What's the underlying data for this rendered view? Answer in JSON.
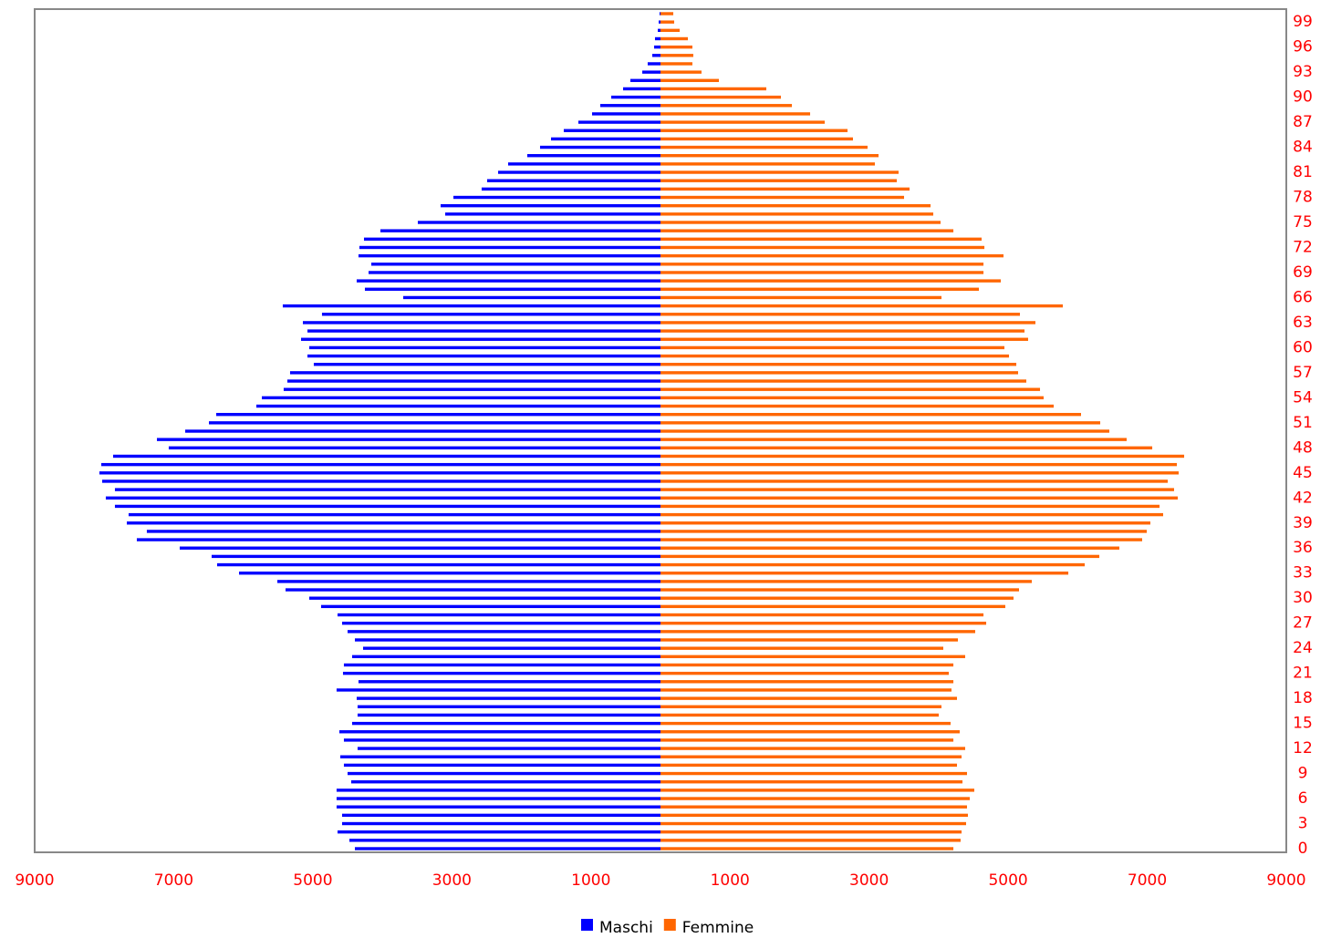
{
  "chart_data": {
    "type": "bar",
    "orientation": "horizontal",
    "categories": [
      "0",
      null,
      null,
      "3",
      null,
      null,
      "6",
      null,
      null,
      "9",
      null,
      null,
      "12",
      null,
      null,
      "15",
      null,
      null,
      "18",
      null,
      null,
      "21",
      null,
      null,
      "24",
      null,
      null,
      "27",
      null,
      null,
      "30",
      null,
      null,
      "33",
      null,
      null,
      "36",
      null,
      null,
      "39",
      null,
      null,
      "42",
      null,
      null,
      "45",
      null,
      null,
      "48",
      null,
      null,
      "51",
      null,
      null,
      "54",
      null,
      null,
      "57",
      null,
      null,
      "60",
      null,
      null,
      "63",
      null,
      null,
      "66",
      null,
      null,
      "69",
      null,
      null,
      "72",
      null,
      null,
      "75",
      null,
      null,
      "78",
      null,
      null,
      "81",
      null,
      null,
      "84",
      null,
      null,
      "87",
      null,
      null,
      "90",
      null,
      null,
      "93",
      null,
      null,
      "96",
      null,
      null,
      "99",
      null
    ],
    "series": [
      {
        "name": "Maschi",
        "color": "#0000ff",
        "values": [
          -4395,
          -4474,
          -4644,
          -4579,
          -4579,
          -4658,
          -4658,
          -4658,
          -4448,
          -4500,
          -4553,
          -4605,
          -4356,
          -4553,
          -4618,
          -4435,
          -4356,
          -4356,
          -4369,
          -4658,
          -4343,
          -4566,
          -4553,
          -4435,
          -4277,
          -4395,
          -4500,
          -4579,
          -4644,
          -4881,
          -5051,
          -5392,
          -5510,
          -6061,
          -6376,
          -6455,
          -6914,
          -7531,
          -7387,
          -7675,
          -7649,
          -7846,
          -7977,
          -7846,
          -8029,
          -8069,
          -8042,
          -7872,
          -7072,
          -7242,
          -6835,
          -6494,
          -6389,
          -5812,
          -5733,
          -5419,
          -5366,
          -5327,
          -4986,
          -5077,
          -5051,
          -5169,
          -5077,
          -5143,
          -4868,
          -5432,
          -3700,
          -4251,
          -4369,
          -4198,
          -4159,
          -4343,
          -4330,
          -4264,
          -4028,
          -3490,
          -3096,
          -3162,
          -2978,
          -2572,
          -2493,
          -2335,
          -2191,
          -1916,
          -1732,
          -1574,
          -1391,
          -1181,
          -984,
          -866,
          -708,
          -538,
          -433,
          -262,
          -184,
          -118,
          -92,
          -79,
          -39,
          -26,
          -13
        ]
      },
      {
        "name": "Femmine",
        "color": "#ff6600",
        "values": [
          4212,
          4316,
          4330,
          4395,
          4421,
          4408,
          4448,
          4513,
          4343,
          4408,
          4264,
          4330,
          4382,
          4212,
          4303,
          4172,
          4002,
          4041,
          4264,
          4185,
          4212,
          4146,
          4212,
          4382,
          4067,
          4277,
          4526,
          4684,
          4645,
          4959,
          5077,
          5156,
          5340,
          5865,
          6101,
          6311,
          6599,
          6927,
          6993,
          7045,
          7229,
          7177,
          7439,
          7386,
          7295,
          7452,
          7426,
          7531,
          7072,
          6704,
          6455,
          6324,
          6048,
          5655,
          5510,
          5458,
          5261,
          5143,
          5117,
          5012,
          4946,
          5287,
          5235,
          5392,
          5169,
          5786,
          4041,
          4579,
          4894,
          4645,
          4645,
          4933,
          4658,
          4618,
          4212,
          4028,
          3923,
          3884,
          3503,
          3582,
          3398,
          3424,
          3083,
          3136,
          2978,
          2768,
          2690,
          2362,
          2152,
          1890,
          1732,
          1522,
          840,
          590,
          459,
          472,
          459,
          394,
          276,
          197,
          184
        ]
      }
    ],
    "xlim": [
      -9000,
      9000
    ],
    "xticks": [
      {
        "value": -9000,
        "label": "9000"
      },
      {
        "value": -7000,
        "label": "7000"
      },
      {
        "value": -5000,
        "label": "5000"
      },
      {
        "value": -3000,
        "label": "3000"
      },
      {
        "value": -1000,
        "label": "1000"
      },
      1000,
      3000,
      5000,
      7000,
      9000
    ],
    "legend": "bottom"
  }
}
